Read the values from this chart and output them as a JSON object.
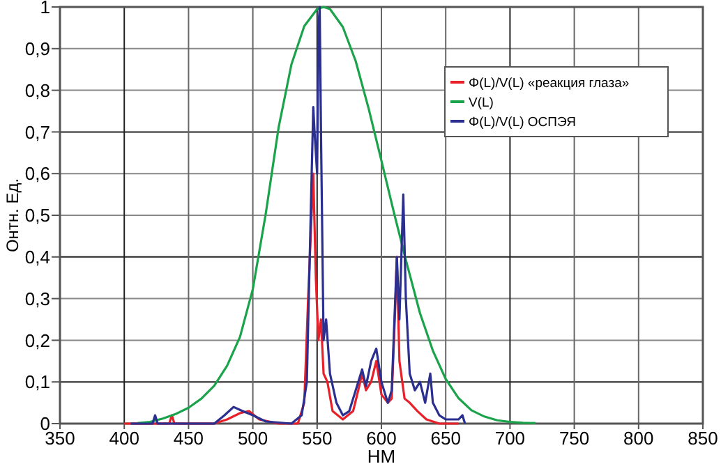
{
  "chart_data": {
    "type": "line",
    "xlabel": "НМ",
    "ylabel": "Онтн. Ед.",
    "xlim": [
      350,
      850
    ],
    "xticks": [
      350,
      400,
      450,
      500,
      550,
      600,
      650,
      700,
      750,
      800,
      850
    ],
    "ylim": [
      0,
      1
    ],
    "yticks": [
      0,
      {
        "value": 0.1,
        "label": "0,1"
      },
      {
        "value": 0.2,
        "label": "0,2"
      },
      {
        "value": 0.3,
        "label": "0,3"
      },
      {
        "value": 0.4,
        "label": "0,4"
      },
      {
        "value": 0.5,
        "label": "0,5"
      },
      {
        "value": 0.6,
        "label": "0,6"
      },
      {
        "value": 0.7,
        "label": "0,7"
      },
      {
        "value": 0.8,
        "label": "0,8"
      },
      {
        "value": 0.9,
        "label": "0,9"
      },
      1
    ],
    "grid": true,
    "legend": "top right",
    "series": [
      {
        "name": "Φ(L)/V(L) «реакция глаза»",
        "color": "#e8202a",
        "x": [
          400,
          435,
          437,
          439,
          470,
          480,
          490,
          497,
          505,
          520,
          535,
          540,
          543,
          545,
          547,
          549,
          551,
          553,
          555,
          558,
          562,
          570,
          578,
          582,
          585,
          588,
          592,
          596,
          600,
          605,
          608,
          611,
          612,
          614,
          618,
          622,
          628,
          635,
          645,
          660
        ],
        "values": [
          0,
          0,
          0.02,
          0,
          0,
          0.01,
          0.025,
          0.03,
          0.01,
          0,
          0,
          0.05,
          0.3,
          0.45,
          0.6,
          0.35,
          0.2,
          0.25,
          0.12,
          0.1,
          0.03,
          0.01,
          0.03,
          0.08,
          0.12,
          0.08,
          0.1,
          0.15,
          0.07,
          0.05,
          0.06,
          0.3,
          0.4,
          0.15,
          0.06,
          0.05,
          0.03,
          0.01,
          0,
          0
        ]
      },
      {
        "name": "V(L)",
        "color": "#1aa34a",
        "x": [
          410,
          420,
          430,
          440,
          450,
          460,
          470,
          480,
          490,
          500,
          510,
          520,
          530,
          540,
          550,
          555,
          560,
          570,
          580,
          590,
          600,
          610,
          620,
          630,
          640,
          650,
          660,
          670,
          680,
          690,
          700,
          710,
          720
        ],
        "values": [
          0.001,
          0.004,
          0.012,
          0.023,
          0.038,
          0.06,
          0.091,
          0.139,
          0.208,
          0.323,
          0.503,
          0.71,
          0.862,
          0.954,
          0.995,
          1,
          0.995,
          0.952,
          0.87,
          0.757,
          0.631,
          0.503,
          0.381,
          0.265,
          0.175,
          0.107,
          0.061,
          0.032,
          0.017,
          0.008,
          0.004,
          0.002,
          0.001
        ]
      },
      {
        "name": "Φ(L)/V(L) ОСПЭЯ",
        "color": "#2b2f8f",
        "x": [
          405,
          422,
          424,
          426,
          470,
          478,
          485,
          492,
          500,
          510,
          530,
          538,
          542,
          545,
          547,
          548,
          550,
          551,
          552,
          553,
          555,
          557,
          560,
          565,
          570,
          575,
          580,
          585,
          588,
          592,
          596,
          600,
          605,
          608,
          612,
          614,
          617,
          619,
          622,
          626,
          630,
          634,
          638,
          640,
          645,
          650,
          660,
          663,
          665
        ],
        "values": [
          0,
          0,
          0.02,
          0,
          0,
          0.02,
          0.04,
          0.03,
          0.02,
          0.005,
          0,
          0.02,
          0.1,
          0.5,
          0.76,
          0.7,
          0.6,
          0.95,
          1,
          0.7,
          0.2,
          0.25,
          0.12,
          0.05,
          0.02,
          0.03,
          0.08,
          0.13,
          0.09,
          0.15,
          0.18,
          0.1,
          0.05,
          0.08,
          0.4,
          0.25,
          0.55,
          0.3,
          0.12,
          0.08,
          0.1,
          0.05,
          0.12,
          0.05,
          0.02,
          0.01,
          0.01,
          0.02,
          0
        ]
      }
    ]
  }
}
